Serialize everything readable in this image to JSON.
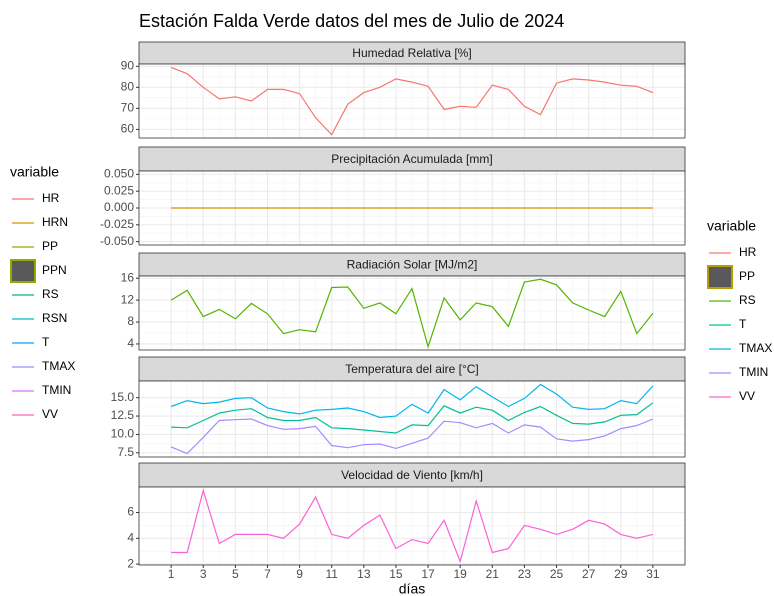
{
  "title": "Estación Falda Verde datos del mes de Julio de 2024",
  "x_label": "días",
  "x": [
    1,
    2,
    3,
    4,
    5,
    6,
    7,
    8,
    9,
    10,
    11,
    12,
    13,
    14,
    15,
    16,
    17,
    18,
    19,
    20,
    21,
    22,
    23,
    24,
    25,
    26,
    27,
    28,
    29,
    30,
    31
  ],
  "xlim": [
    -1,
    33
  ],
  "xticks": [
    1,
    3,
    5,
    7,
    9,
    11,
    13,
    15,
    17,
    19,
    21,
    23,
    25,
    27,
    29,
    31
  ],
  "legends": [
    {
      "title": "variable",
      "items": [
        {
          "name": "HR",
          "color": "#F8766D",
          "key": "line"
        },
        {
          "name": "HRN",
          "color": "#D39200",
          "key": "line"
        },
        {
          "name": "PP",
          "color": "#93AA00",
          "key": "line"
        },
        {
          "name": "PPN",
          "color": "#93AA00",
          "key": "box"
        },
        {
          "name": "RS",
          "color": "#00BA6E",
          "key": "line"
        },
        {
          "name": "RSN",
          "color": "#00BCC8",
          "key": "line"
        },
        {
          "name": "T",
          "color": "#00A9FF",
          "key": "line"
        },
        {
          "name": "TMAX",
          "color": "#9590FF",
          "key": "line"
        },
        {
          "name": "TMIN",
          "color": "#DB72FB",
          "key": "line"
        },
        {
          "name": "VV",
          "color": "#FF61C3",
          "key": "line"
        }
      ]
    },
    {
      "title": "variable",
      "items": [
        {
          "name": "HR",
          "color": "#F8766D",
          "key": "line"
        },
        {
          "name": "PP",
          "color": "#B79F00",
          "key": "box"
        },
        {
          "name": "RS",
          "color": "#53B400",
          "key": "line"
        },
        {
          "name": "T",
          "color": "#00C094",
          "key": "line"
        },
        {
          "name": "TMAX",
          "color": "#00B6EB",
          "key": "line"
        },
        {
          "name": "TMIN",
          "color": "#A58AFF",
          "key": "line"
        },
        {
          "name": "VV",
          "color": "#FB61D7",
          "key": "line"
        }
      ]
    }
  ],
  "chart_data": [
    {
      "type": "line",
      "title": "Humedad Relativa [%]",
      "ylim": [
        55.9,
        91.1
      ],
      "yticks": [
        60,
        70,
        80,
        90
      ],
      "grid": true,
      "series": [
        {
          "color": "#F8766D",
          "values": [
            89.5,
            86.5,
            80,
            74.5,
            75.5,
            73.5,
            79,
            79,
            77,
            65.5,
            57.5,
            72,
            77.5,
            80,
            84,
            82.5,
            80.5,
            69.5,
            71,
            70.5,
            81,
            79,
            71,
            67,
            82,
            84,
            83.5,
            82.5,
            81,
            80.5,
            77.5
          ]
        }
      ]
    },
    {
      "type": "line",
      "title": "Precipitación Acumulada [mm]",
      "ylim": [
        -0.055,
        0.055
      ],
      "yticks": [
        {
          "value": -0.05,
          "label": "-0.050"
        },
        {
          "value": -0.025,
          "label": "-0.025"
        },
        {
          "value": 0,
          "label": "0.000"
        },
        {
          "value": 0.025,
          "label": "0.025"
        },
        {
          "value": 0.05,
          "label": "0.050"
        }
      ],
      "grid": true,
      "series": [
        {
          "color": "#D39200",
          "values": [
            0,
            0,
            0,
            0,
            0,
            0,
            0,
            0,
            0,
            0,
            0,
            0,
            0,
            0,
            0,
            0,
            0,
            0,
            0,
            0,
            0,
            0,
            0,
            0,
            0,
            0,
            0,
            0,
            0,
            0,
            0
          ]
        }
      ]
    },
    {
      "type": "line",
      "title": "Radiación Solar [MJ/m2]",
      "ylim": [
        2.9,
        16.4
      ],
      "yticks": [
        4,
        8,
        12,
        16
      ],
      "grid": true,
      "series": [
        {
          "color": "#53B400",
          "values": [
            12,
            13.8,
            9,
            10.3,
            8.6,
            11.4,
            9.5,
            5.9,
            6.6,
            6.2,
            14.3,
            14.4,
            10.5,
            11.5,
            9.5,
            14.1,
            3.5,
            12.4,
            8.4,
            11.5,
            10.8,
            7.2,
            15.3,
            15.8,
            14.8,
            11.5,
            10.2,
            9,
            13.6,
            5.9,
            9.6
          ]
        }
      ]
    },
    {
      "type": "line",
      "title": "Temperatura del aire [°C]",
      "ylim": [
        6.93,
        17.27
      ],
      "yticks": [
        7.5,
        {
          "value": 10,
          "label": "10.0"
        },
        12.5,
        {
          "value": 15,
          "label": "15.0"
        }
      ],
      "grid": true,
      "series": [
        {
          "color": "#00C094",
          "values": [
            11.0,
            10.9,
            11.9,
            12.9,
            13.3,
            13.5,
            12.3,
            11.9,
            11.9,
            12.3,
            10.9,
            10.8,
            10.6,
            10.4,
            10.2,
            11.3,
            11.2,
            13.9,
            12.9,
            13.7,
            13.3,
            11.9,
            13.0,
            13.8,
            12.6,
            11.5,
            11.4,
            11.7,
            12.6,
            12.7,
            14.3
          ]
        },
        {
          "color": "#00B6EB",
          "values": [
            13.8,
            14.6,
            14.2,
            14.4,
            14.9,
            15.0,
            13.6,
            13.1,
            12.8,
            13.3,
            13.4,
            13.6,
            13.1,
            12.3,
            12.5,
            14.1,
            12.9,
            16.1,
            14.7,
            16.5,
            15.1,
            13.8,
            14.9,
            16.8,
            15.5,
            13.7,
            13.4,
            13.5,
            14.6,
            14.2,
            16.6
          ]
        },
        {
          "color": "#A58AFF",
          "values": [
            8.3,
            7.4,
            9.6,
            11.9,
            12.0,
            12.1,
            11.2,
            10.7,
            10.8,
            11.1,
            8.5,
            8.2,
            8.6,
            8.7,
            8.1,
            8.8,
            9.5,
            11.8,
            11.6,
            10.9,
            11.5,
            10.2,
            11.3,
            11.0,
            9.4,
            9.1,
            9.3,
            9.8,
            10.8,
            11.2,
            12.1
          ]
        }
      ]
    },
    {
      "type": "line",
      "title": "Velocidad de Viento [km/h]",
      "ylim": [
        1.93,
        7.98
      ],
      "yticks": [
        2,
        4,
        6
      ],
      "grid": true,
      "series": [
        {
          "color": "#FB61D7",
          "values": [
            2.9,
            2.9,
            7.7,
            3.6,
            4.3,
            4.3,
            4.3,
            4.0,
            5.1,
            7.2,
            4.3,
            4.0,
            5.0,
            5.8,
            3.2,
            3.9,
            3.6,
            5.4,
            2.2,
            6.9,
            2.9,
            3.2,
            5.0,
            4.7,
            4.3,
            4.7,
            5.4,
            5.1,
            4.3,
            4.0,
            4.3
          ]
        }
      ]
    }
  ]
}
